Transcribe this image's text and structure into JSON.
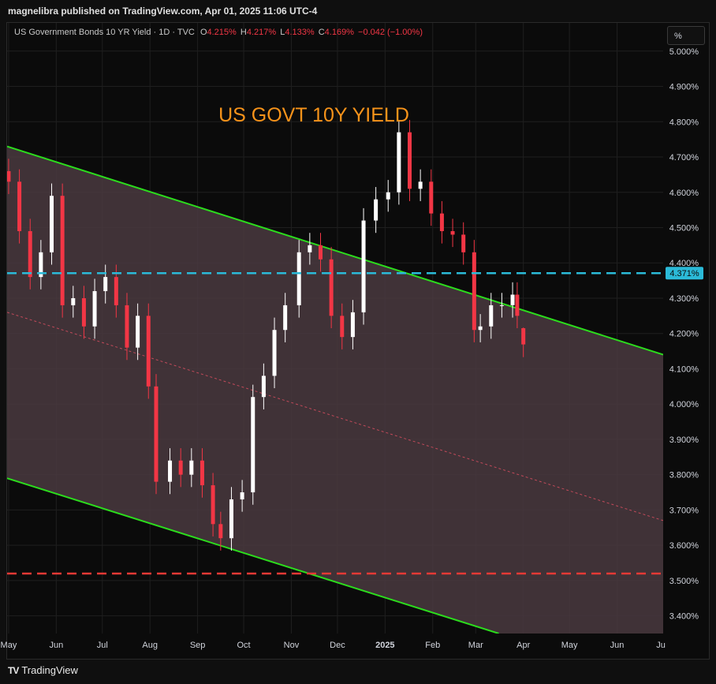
{
  "header": {
    "published": "magnelibra published on TradingView.com, Apr 01, 2025 11:06 UTC-4"
  },
  "legend": {
    "symbol": "US Government Bonds 10 YR Yield · 1D · TVC",
    "open_label": "O",
    "open": "4.215%",
    "high_label": "H",
    "high": "4.217%",
    "low_label": "L",
    "low": "4.133%",
    "close_label": "C",
    "close": "4.169%",
    "change": "−0.042 (−1.00%)"
  },
  "scale_button": "%",
  "brand": {
    "name": "TradingView"
  },
  "colors": {
    "up": "#ffffff",
    "down": "#f23645",
    "channel": "#2cdc1d",
    "fill": "#4a3a40",
    "cyan": "#2bbad8",
    "red_line": "#e53935",
    "title": "#f7931a"
  },
  "chart_data": {
    "type": "candlestick",
    "title": "US GOVT 10Y YIELD",
    "y_unit": "%",
    "ylim": [
      3.35,
      5.08
    ],
    "y_ticks": [
      "5.000%",
      "4.900%",
      "4.800%",
      "4.700%",
      "4.600%",
      "4.500%",
      "4.400%",
      "4.300%",
      "4.200%",
      "4.100%",
      "4.000%",
      "3.900%",
      "3.800%",
      "3.700%",
      "3.600%",
      "3.500%",
      "3.400%"
    ],
    "y_tick_values": [
      5.0,
      4.9,
      4.8,
      4.7,
      4.6,
      4.5,
      4.4,
      4.3,
      4.2,
      4.1,
      4.0,
      3.9,
      3.8,
      3.7,
      3.6,
      3.5,
      3.4
    ],
    "x_range": [
      "2024-04-30",
      "2025-07-01"
    ],
    "x_ticks": [
      {
        "label": "May",
        "date": "2024-05-01"
      },
      {
        "label": "Jun",
        "date": "2024-06-01"
      },
      {
        "label": "Jul",
        "date": "2024-07-01"
      },
      {
        "label": "Aug",
        "date": "2024-08-01"
      },
      {
        "label": "Sep",
        "date": "2024-09-01"
      },
      {
        "label": "Oct",
        "date": "2024-10-01"
      },
      {
        "label": "Nov",
        "date": "2024-11-01"
      },
      {
        "label": "Dec",
        "date": "2024-12-01"
      },
      {
        "label": "2025",
        "date": "2025-01-01"
      },
      {
        "label": "Feb",
        "date": "2025-02-01"
      },
      {
        "label": "Mar",
        "date": "2025-03-01"
      },
      {
        "label": "Apr",
        "date": "2025-04-01"
      },
      {
        "label": "May",
        "date": "2025-05-01"
      },
      {
        "label": "Jun",
        "date": "2025-06-01"
      },
      {
        "label": "Ju",
        "date": "2025-07-01"
      }
    ],
    "closes": [
      [
        "2024-05-01",
        4.63
      ],
      [
        "2024-05-08",
        4.49
      ],
      [
        "2024-05-15",
        4.36
      ],
      [
        "2024-05-22",
        4.43
      ],
      [
        "2024-05-29",
        4.59
      ],
      [
        "2024-06-05",
        4.28
      ],
      [
        "2024-06-12",
        4.3
      ],
      [
        "2024-06-19",
        4.22
      ],
      [
        "2024-06-26",
        4.32
      ],
      [
        "2024-07-03",
        4.36
      ],
      [
        "2024-07-10",
        4.28
      ],
      [
        "2024-07-17",
        4.16
      ],
      [
        "2024-07-24",
        4.25
      ],
      [
        "2024-07-31",
        4.05
      ],
      [
        "2024-08-05",
        3.78
      ],
      [
        "2024-08-14",
        3.84
      ],
      [
        "2024-08-21",
        3.8
      ],
      [
        "2024-08-28",
        3.84
      ],
      [
        "2024-09-04",
        3.77
      ],
      [
        "2024-09-11",
        3.66
      ],
      [
        "2024-09-16",
        3.62
      ],
      [
        "2024-09-23",
        3.73
      ],
      [
        "2024-09-30",
        3.75
      ],
      [
        "2024-10-07",
        4.02
      ],
      [
        "2024-10-14",
        4.08
      ],
      [
        "2024-10-21",
        4.21
      ],
      [
        "2024-10-28",
        4.28
      ],
      [
        "2024-11-06",
        4.43
      ],
      [
        "2024-11-13",
        4.45
      ],
      [
        "2024-11-20",
        4.41
      ],
      [
        "2024-11-27",
        4.25
      ],
      [
        "2024-12-04",
        4.19
      ],
      [
        "2024-12-11",
        4.26
      ],
      [
        "2024-12-18",
        4.52
      ],
      [
        "2024-12-26",
        4.58
      ],
      [
        "2025-01-03",
        4.6
      ],
      [
        "2025-01-10",
        4.77
      ],
      [
        "2025-01-17",
        4.61
      ],
      [
        "2025-01-24",
        4.63
      ],
      [
        "2025-01-31",
        4.54
      ],
      [
        "2025-02-07",
        4.49
      ],
      [
        "2025-02-14",
        4.48
      ],
      [
        "2025-02-21",
        4.43
      ],
      [
        "2025-02-28",
        4.21
      ],
      [
        "2025-03-04",
        4.22
      ],
      [
        "2025-03-11",
        4.28
      ],
      [
        "2025-03-18",
        4.28
      ],
      [
        "2025-03-25",
        4.31
      ],
      [
        "2025-03-28",
        4.25
      ],
      [
        "2025-04-01",
        4.169
      ]
    ],
    "last_candle": {
      "date": "2025-04-01",
      "open": 4.215,
      "high": 4.217,
      "low": 4.133,
      "close": 4.169
    },
    "horizontal_lines": [
      {
        "value": 4.371,
        "label": "4.371%",
        "style": "dashed",
        "color": "#2bbad8"
      },
      {
        "value": 3.52,
        "style": "dashed",
        "color": "#e53935"
      }
    ],
    "channel": {
      "upper": [
        [
          "2024-04-30",
          4.73
        ],
        [
          "2025-07-01",
          4.14
        ]
      ],
      "lower": [
        [
          "2024-04-30",
          3.79
        ],
        [
          "2025-03-16",
          3.35
        ]
      ],
      "mid": [
        [
          "2024-04-30",
          4.26
        ],
        [
          "2025-07-01",
          3.67
        ]
      ]
    }
  }
}
